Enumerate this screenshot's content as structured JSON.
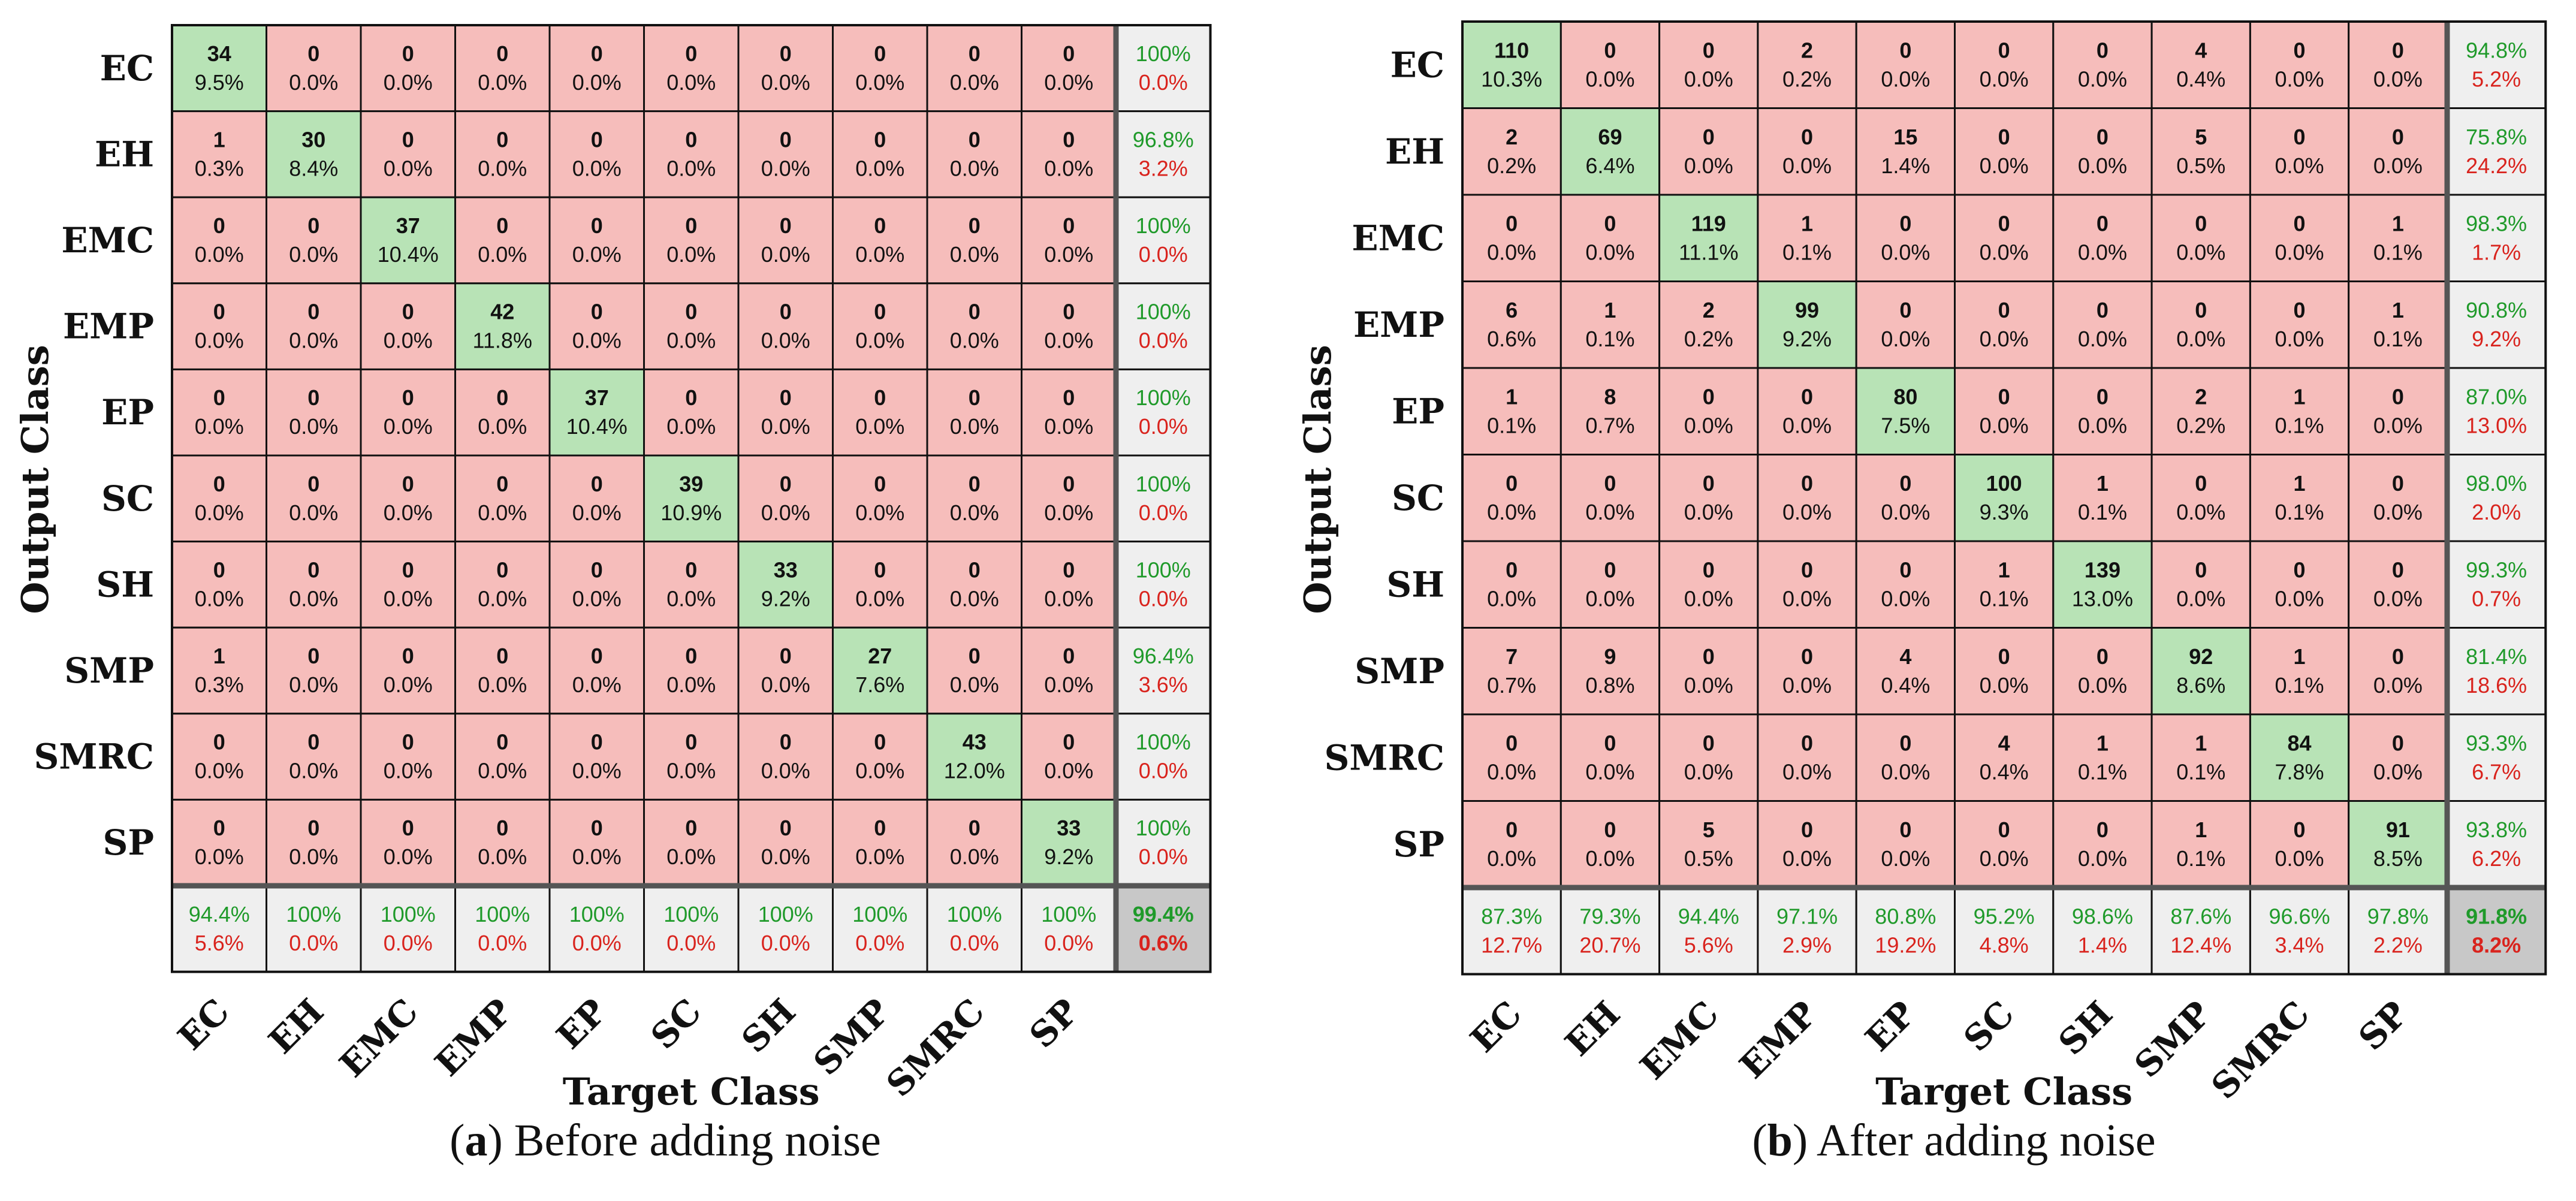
{
  "colors": {
    "diag": "#b8e3b6",
    "offdiag": "#f6bdbb",
    "summary": "#efefef",
    "overall": "#c8c8c8",
    "green_text": "#1f9a2a",
    "red_text": "#d9231d",
    "grid": "#111111"
  },
  "chart_data": [
    {
      "type": "heatmap",
      "caption_letter": "a",
      "caption_text": ") Before adding noise",
      "caption_open": "(",
      "ylabel": "Output Class",
      "xlabel": "Target Class",
      "classes": [
        "EC",
        "EH",
        "EMC",
        "EMP",
        "EP",
        "SC",
        "SH",
        "SMP",
        "SMRC",
        "SP"
      ],
      "counts": [
        [
          34,
          0,
          0,
          0,
          0,
          0,
          0,
          0,
          0,
          0
        ],
        [
          1,
          30,
          0,
          0,
          0,
          0,
          0,
          0,
          0,
          0
        ],
        [
          0,
          0,
          37,
          0,
          0,
          0,
          0,
          0,
          0,
          0
        ],
        [
          0,
          0,
          0,
          42,
          0,
          0,
          0,
          0,
          0,
          0
        ],
        [
          0,
          0,
          0,
          0,
          37,
          0,
          0,
          0,
          0,
          0
        ],
        [
          0,
          0,
          0,
          0,
          0,
          39,
          0,
          0,
          0,
          0
        ],
        [
          0,
          0,
          0,
          0,
          0,
          0,
          33,
          0,
          0,
          0
        ],
        [
          1,
          0,
          0,
          0,
          0,
          0,
          0,
          27,
          0,
          0
        ],
        [
          0,
          0,
          0,
          0,
          0,
          0,
          0,
          0,
          43,
          0
        ],
        [
          0,
          0,
          0,
          0,
          0,
          0,
          0,
          0,
          0,
          33
        ]
      ],
      "percents": [
        [
          "9.5%",
          "0.0%",
          "0.0%",
          "0.0%",
          "0.0%",
          "0.0%",
          "0.0%",
          "0.0%",
          "0.0%",
          "0.0%"
        ],
        [
          "0.3%",
          "8.4%",
          "0.0%",
          "0.0%",
          "0.0%",
          "0.0%",
          "0.0%",
          "0.0%",
          "0.0%",
          "0.0%"
        ],
        [
          "0.0%",
          "0.0%",
          "10.4%",
          "0.0%",
          "0.0%",
          "0.0%",
          "0.0%",
          "0.0%",
          "0.0%",
          "0.0%"
        ],
        [
          "0.0%",
          "0.0%",
          "0.0%",
          "11.8%",
          "0.0%",
          "0.0%",
          "0.0%",
          "0.0%",
          "0.0%",
          "0.0%"
        ],
        [
          "0.0%",
          "0.0%",
          "0.0%",
          "0.0%",
          "10.4%",
          "0.0%",
          "0.0%",
          "0.0%",
          "0.0%",
          "0.0%"
        ],
        [
          "0.0%",
          "0.0%",
          "0.0%",
          "0.0%",
          "0.0%",
          "10.9%",
          "0.0%",
          "0.0%",
          "0.0%",
          "0.0%"
        ],
        [
          "0.0%",
          "0.0%",
          "0.0%",
          "0.0%",
          "0.0%",
          "0.0%",
          "9.2%",
          "0.0%",
          "0.0%",
          "0.0%"
        ],
        [
          "0.3%",
          "0.0%",
          "0.0%",
          "0.0%",
          "0.0%",
          "0.0%",
          "0.0%",
          "7.6%",
          "0.0%",
          "0.0%"
        ],
        [
          "0.0%",
          "0.0%",
          "0.0%",
          "0.0%",
          "0.0%",
          "0.0%",
          "0.0%",
          "0.0%",
          "12.0%",
          "0.0%"
        ],
        [
          "0.0%",
          "0.0%",
          "0.0%",
          "0.0%",
          "0.0%",
          "0.0%",
          "0.0%",
          "0.0%",
          "0.0%",
          "9.2%"
        ]
      ],
      "row_summary": [
        [
          "100%",
          "0.0%"
        ],
        [
          "96.8%",
          "3.2%"
        ],
        [
          "100%",
          "0.0%"
        ],
        [
          "100%",
          "0.0%"
        ],
        [
          "100%",
          "0.0%"
        ],
        [
          "100%",
          "0.0%"
        ],
        [
          "100%",
          "0.0%"
        ],
        [
          "96.4%",
          "3.6%"
        ],
        [
          "100%",
          "0.0%"
        ],
        [
          "100%",
          "0.0%"
        ]
      ],
      "col_summary": [
        [
          "94.4%",
          "5.6%"
        ],
        [
          "100%",
          "0.0%"
        ],
        [
          "100%",
          "0.0%"
        ],
        [
          "100%",
          "0.0%"
        ],
        [
          "100%",
          "0.0%"
        ],
        [
          "100%",
          "0.0%"
        ],
        [
          "100%",
          "0.0%"
        ],
        [
          "100%",
          "0.0%"
        ],
        [
          "100%",
          "0.0%"
        ],
        [
          "100%",
          "0.0%"
        ]
      ],
      "overall": [
        "99.4%",
        "0.6%"
      ]
    },
    {
      "type": "heatmap",
      "caption_letter": "b",
      "caption_text": ") After adding noise",
      "caption_open": "(",
      "ylabel": "Output Class",
      "xlabel": "Target Class",
      "classes": [
        "EC",
        "EH",
        "EMC",
        "EMP",
        "EP",
        "SC",
        "SH",
        "SMP",
        "SMRC",
        "SP"
      ],
      "counts": [
        [
          110,
          0,
          0,
          2,
          0,
          0,
          0,
          4,
          0,
          0
        ],
        [
          2,
          69,
          0,
          0,
          15,
          0,
          0,
          5,
          0,
          0
        ],
        [
          0,
          0,
          119,
          1,
          0,
          0,
          0,
          0,
          0,
          1
        ],
        [
          6,
          1,
          2,
          99,
          0,
          0,
          0,
          0,
          0,
          1
        ],
        [
          1,
          8,
          0,
          0,
          80,
          0,
          0,
          2,
          1,
          0
        ],
        [
          0,
          0,
          0,
          0,
          0,
          100,
          1,
          0,
          1,
          0
        ],
        [
          0,
          0,
          0,
          0,
          0,
          1,
          139,
          0,
          0,
          0
        ],
        [
          7,
          9,
          0,
          0,
          4,
          0,
          0,
          92,
          1,
          0
        ],
        [
          0,
          0,
          0,
          0,
          0,
          4,
          1,
          1,
          84,
          0
        ],
        [
          0,
          0,
          5,
          0,
          0,
          0,
          0,
          1,
          0,
          91
        ]
      ],
      "percents": [
        [
          "10.3%",
          "0.0%",
          "0.0%",
          "0.2%",
          "0.0%",
          "0.0%",
          "0.0%",
          "0.4%",
          "0.0%",
          "0.0%"
        ],
        [
          "0.2%",
          "6.4%",
          "0.0%",
          "0.0%",
          "1.4%",
          "0.0%",
          "0.0%",
          "0.5%",
          "0.0%",
          "0.0%"
        ],
        [
          "0.0%",
          "0.0%",
          "11.1%",
          "0.1%",
          "0.0%",
          "0.0%",
          "0.0%",
          "0.0%",
          "0.0%",
          "0.1%"
        ],
        [
          "0.6%",
          "0.1%",
          "0.2%",
          "9.2%",
          "0.0%",
          "0.0%",
          "0.0%",
          "0.0%",
          "0.0%",
          "0.1%"
        ],
        [
          "0.1%",
          "0.7%",
          "0.0%",
          "0.0%",
          "7.5%",
          "0.0%",
          "0.0%",
          "0.2%",
          "0.1%",
          "0.0%"
        ],
        [
          "0.0%",
          "0.0%",
          "0.0%",
          "0.0%",
          "0.0%",
          "9.3%",
          "0.1%",
          "0.0%",
          "0.1%",
          "0.0%"
        ],
        [
          "0.0%",
          "0.0%",
          "0.0%",
          "0.0%",
          "0.0%",
          "0.1%",
          "13.0%",
          "0.0%",
          "0.0%",
          "0.0%"
        ],
        [
          "0.7%",
          "0.8%",
          "0.0%",
          "0.0%",
          "0.4%",
          "0.0%",
          "0.0%",
          "8.6%",
          "0.1%",
          "0.0%"
        ],
        [
          "0.0%",
          "0.0%",
          "0.0%",
          "0.0%",
          "0.0%",
          "0.4%",
          "0.1%",
          "0.1%",
          "7.8%",
          "0.0%"
        ],
        [
          "0.0%",
          "0.0%",
          "0.5%",
          "0.0%",
          "0.0%",
          "0.0%",
          "0.0%",
          "0.1%",
          "0.0%",
          "8.5%"
        ]
      ],
      "row_summary": [
        [
          "94.8%",
          "5.2%"
        ],
        [
          "75.8%",
          "24.2%"
        ],
        [
          "98.3%",
          "1.7%"
        ],
        [
          "90.8%",
          "9.2%"
        ],
        [
          "87.0%",
          "13.0%"
        ],
        [
          "98.0%",
          "2.0%"
        ],
        [
          "99.3%",
          "0.7%"
        ],
        [
          "81.4%",
          "18.6%"
        ],
        [
          "93.3%",
          "6.7%"
        ],
        [
          "93.8%",
          "6.2%"
        ]
      ],
      "col_summary": [
        [
          "87.3%",
          "12.7%"
        ],
        [
          "79.3%",
          "20.7%"
        ],
        [
          "94.4%",
          "5.6%"
        ],
        [
          "97.1%",
          "2.9%"
        ],
        [
          "80.8%",
          "19.2%"
        ],
        [
          "95.2%",
          "4.8%"
        ],
        [
          "98.6%",
          "1.4%"
        ],
        [
          "87.6%",
          "12.4%"
        ],
        [
          "96.6%",
          "3.4%"
        ],
        [
          "97.8%",
          "2.2%"
        ]
      ],
      "overall": [
        "91.8%",
        "8.2%"
      ]
    }
  ]
}
